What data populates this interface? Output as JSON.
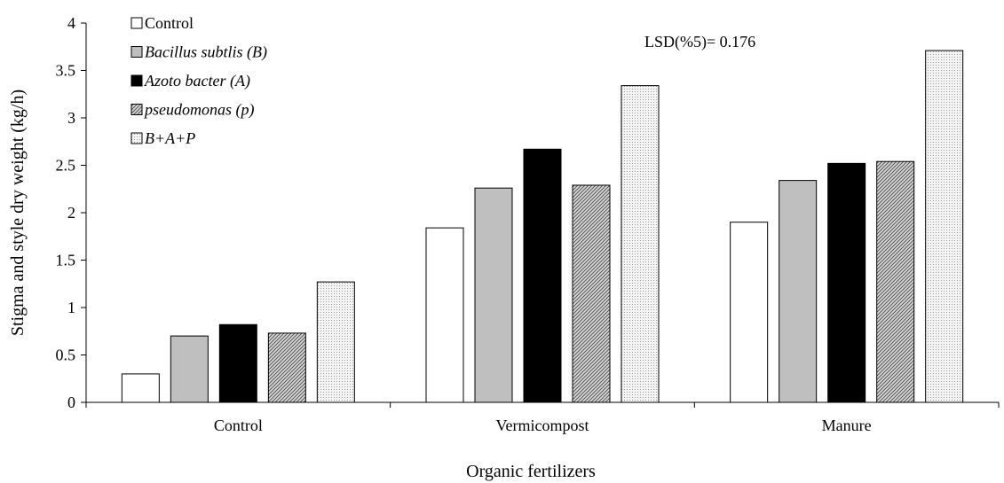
{
  "chart_data": {
    "type": "bar",
    "title": "",
    "xlabel": "Organic fertilizers",
    "ylabel": "Stigma and style dry weight (kg/h)",
    "ylim": [
      0,
      4
    ],
    "yticks": [
      "0",
      "0.5",
      "1",
      "1.5",
      "2",
      "2.5",
      "3",
      "3.5",
      "4"
    ],
    "grid": false,
    "legend_position": "top-left",
    "annotation": "LSD(%5)= 0.176",
    "categories": [
      "Control",
      "Vermicompost",
      "Manure"
    ],
    "series": [
      {
        "name": "Control",
        "values": [
          0.3,
          1.84,
          1.9
        ],
        "fill": "white",
        "italic": false
      },
      {
        "name": "Bacillus subtlis (B)",
        "values": [
          0.7,
          2.26,
          2.34
        ],
        "fill": "gray",
        "italic": true
      },
      {
        "name": "Azoto bacter (A)",
        "values": [
          0.82,
          2.67,
          2.52
        ],
        "fill": "black",
        "italic": true
      },
      {
        "name": "pseudomonas (p)",
        "values": [
          0.73,
          2.29,
          2.54
        ],
        "fill": "hatch",
        "italic": true
      },
      {
        "name": "B+A+P",
        "values": [
          1.27,
          3.34,
          3.71
        ],
        "fill": "dots",
        "italic": true
      }
    ]
  },
  "colors": {
    "gray": "#bfbfbf",
    "black": "#000000",
    "white": "#ffffff",
    "hatch_bg": "#d8d8d8",
    "hatch_line": "#555555",
    "dots_bg": "#f4f4f4",
    "dots_dot": "#9a9a9a"
  }
}
